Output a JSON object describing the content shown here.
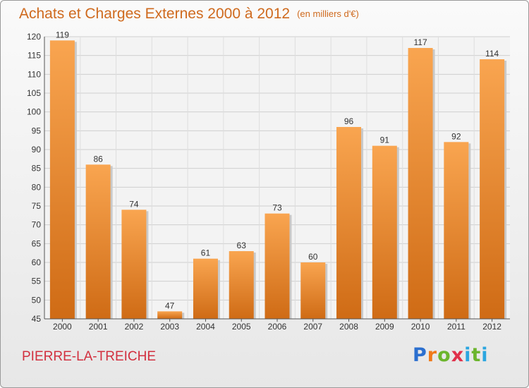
{
  "title": "Achats et Charges Externes 2000 à 2012",
  "unit_note": "(en milliers d'€)",
  "location": "PIERRE-LA-TREICHE",
  "logo": {
    "letters": [
      "P",
      "r",
      "o",
      "x",
      "i",
      "t",
      "i"
    ],
    "colors": [
      "#2b6fcf",
      "#f07a1a",
      "#6cb52d",
      "#e0304a",
      "#2ba6e0",
      "#6cb52d",
      "#2ba6e0"
    ]
  },
  "colors": {
    "bar_light": "#f9a550",
    "bar_dark": "#cf6b15",
    "title": "#cf6a1e",
    "location": "#d2303f"
  },
  "chart_data": {
    "type": "bar",
    "title": "Achats et Charges Externes 2000 à 2012",
    "categories": [
      "2000",
      "2001",
      "2002",
      "2003",
      "2004",
      "2005",
      "2006",
      "2007",
      "2008",
      "2009",
      "2010",
      "2011",
      "2012"
    ],
    "values": [
      119,
      86,
      74,
      47,
      61,
      63,
      73,
      60,
      96,
      91,
      117,
      92,
      114
    ],
    "ylim": [
      45,
      120
    ],
    "yticks": [
      45,
      50,
      55,
      60,
      65,
      70,
      75,
      80,
      85,
      90,
      95,
      100,
      105,
      110,
      115,
      120
    ],
    "grid": true,
    "xlabel": "",
    "ylabel": ""
  }
}
